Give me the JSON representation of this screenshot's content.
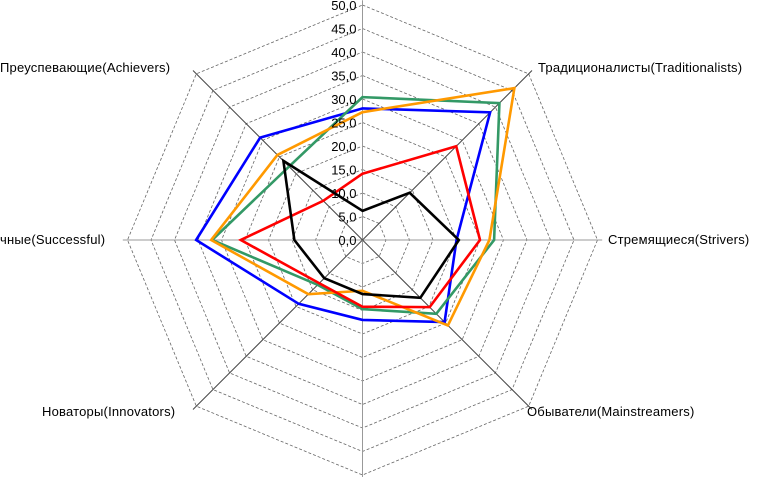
{
  "chart_data": {
    "type": "radar",
    "axes": [
      "",
      "Традиционалисты(Traditionalists)",
      "Стремящиеся(Strivers)",
      "Обыватели(Mainstreamers)",
      "",
      "Новаторы(Innovators)",
      "чные(Successful)",
      "Преуспевающие(Achievers)"
    ],
    "rlim": [
      0,
      50
    ],
    "ticks": [
      "0,0",
      "5,0",
      "10,0",
      "15,0",
      "20,0",
      "25,0",
      "30,0",
      "35,0",
      "40,0",
      "45,0",
      "50,0"
    ],
    "tick_values": [
      0,
      5,
      10,
      15,
      20,
      25,
      30,
      35,
      40,
      45,
      50
    ],
    "grid": true,
    "series": [
      {
        "color": "#0000ff",
        "values": [
          28,
          38.4,
          20,
          24.7,
          17,
          19.2,
          35.4,
          30.8
        ]
      },
      {
        "color": "#339966",
        "values": [
          30.4,
          41.2,
          28,
          22.2,
          14.7,
          13.5,
          32,
          22.1
        ]
      },
      {
        "color": "#ff9900",
        "values": [
          27.2,
          45.7,
          27,
          25.7,
          10.8,
          16.3,
          32.2,
          25.6
        ]
      },
      {
        "color": "#ff0000",
        "values": [
          14.1,
          28.2,
          25,
          20.2,
          14.2,
          13,
          25.9,
          11.8
        ]
      },
      {
        "color": "#000000",
        "values": [
          6.2,
          14.2,
          20.5,
          17.4,
          11.5,
          11.5,
          14.5,
          23.8
        ]
      }
    ]
  }
}
